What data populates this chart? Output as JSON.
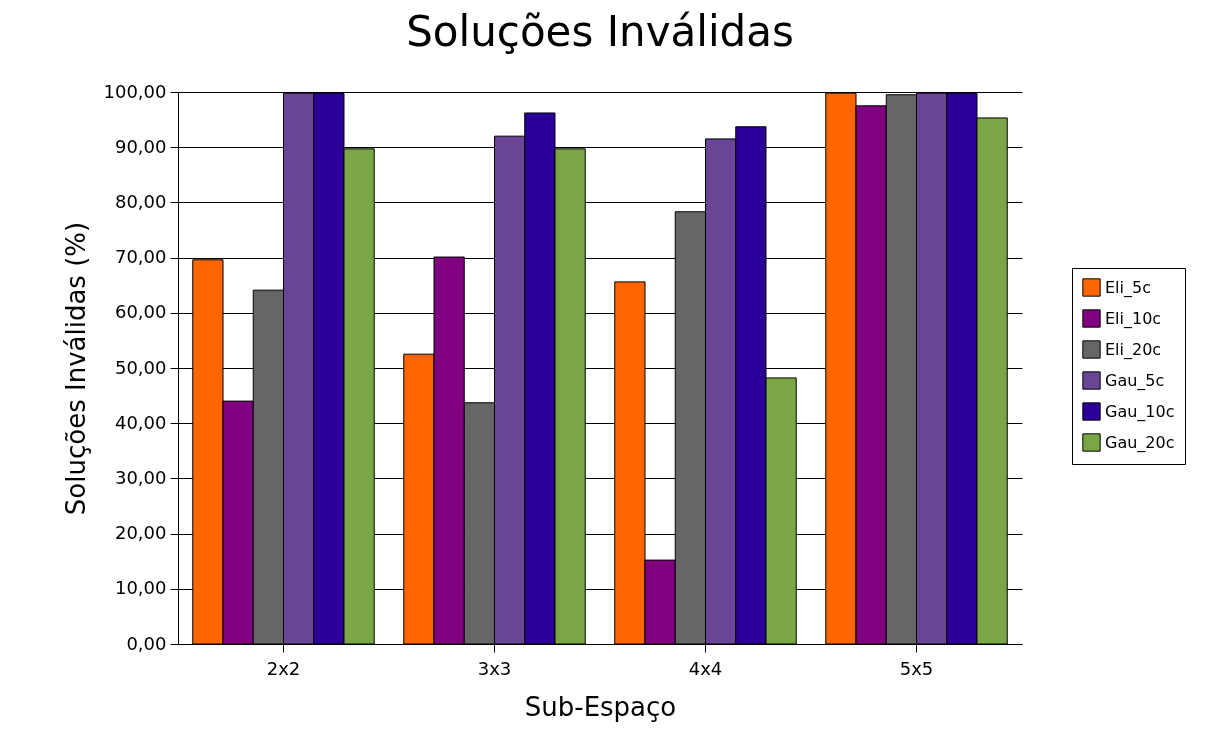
{
  "chart_data": {
    "type": "bar",
    "title": "Soluções Inválidas",
    "xlabel": "Sub-Espaço",
    "ylabel": "Soluções Inválidas (%)",
    "categories": [
      "2x2",
      "3x3",
      "4x4",
      "5x5"
    ],
    "series": [
      {
        "name": "Eli_5c",
        "color": "#ff6600",
        "values": [
          69.6,
          52.5,
          65.6,
          99.8
        ]
      },
      {
        "name": "Eli_10c",
        "color": "#800080",
        "values": [
          44.0,
          70.1,
          15.2,
          97.5
        ]
      },
      {
        "name": "Eli_20c",
        "color": "#666666",
        "values": [
          64.1,
          43.7,
          78.3,
          99.5
        ]
      },
      {
        "name": "Gau_5c",
        "color": "#6b4595",
        "values": [
          99.8,
          92.0,
          91.5,
          99.8
        ]
      },
      {
        "name": "Gau_10c",
        "color": "#2a0099",
        "values": [
          99.8,
          96.2,
          93.7,
          99.8
        ]
      },
      {
        "name": "Gau_20c",
        "color": "#7aa646",
        "values": [
          89.7,
          89.7,
          48.2,
          95.3
        ]
      }
    ],
    "ylim": [
      0,
      100
    ],
    "yticks": [
      {
        "value": 0,
        "label": "0,00"
      },
      {
        "value": 10,
        "label": "10,00"
      },
      {
        "value": 20,
        "label": "20,00"
      },
      {
        "value": 30,
        "label": "30,00"
      },
      {
        "value": 40,
        "label": "40,00"
      },
      {
        "value": 50,
        "label": "50,00"
      },
      {
        "value": 60,
        "label": "60,00"
      },
      {
        "value": 70,
        "label": "70,00"
      },
      {
        "value": 80,
        "label": "80,00"
      },
      {
        "value": 90,
        "label": "90,00"
      },
      {
        "value": 100,
        "label": "100,00"
      }
    ],
    "grid": "y",
    "legend": "right"
  }
}
